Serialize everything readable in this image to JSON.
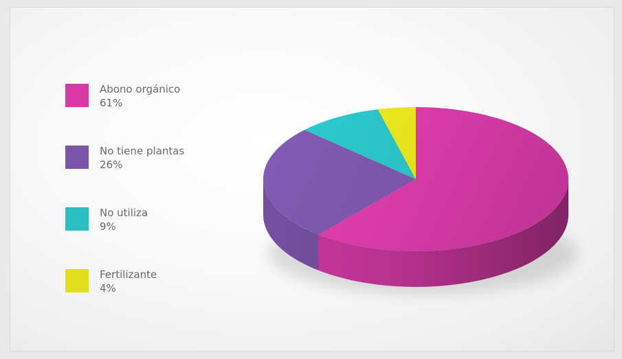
{
  "chart_data": {
    "type": "pie",
    "title": "",
    "slices": [
      {
        "label": "Abono orgánico",
        "value": 61,
        "value_label": "61%",
        "color": "#d63aa6"
      },
      {
        "label": "No tiene plantas",
        "value": 26,
        "value_label": "26%",
        "color": "#7a55a8"
      },
      {
        "label": "No utiliza",
        "value": 9,
        "value_label": "9%",
        "color": "#2bbfc2"
      },
      {
        "label": "Fertilizante",
        "value": 4,
        "value_label": "4%",
        "color": "#e2e01c"
      }
    ],
    "style": "3d",
    "legend": "left"
  }
}
